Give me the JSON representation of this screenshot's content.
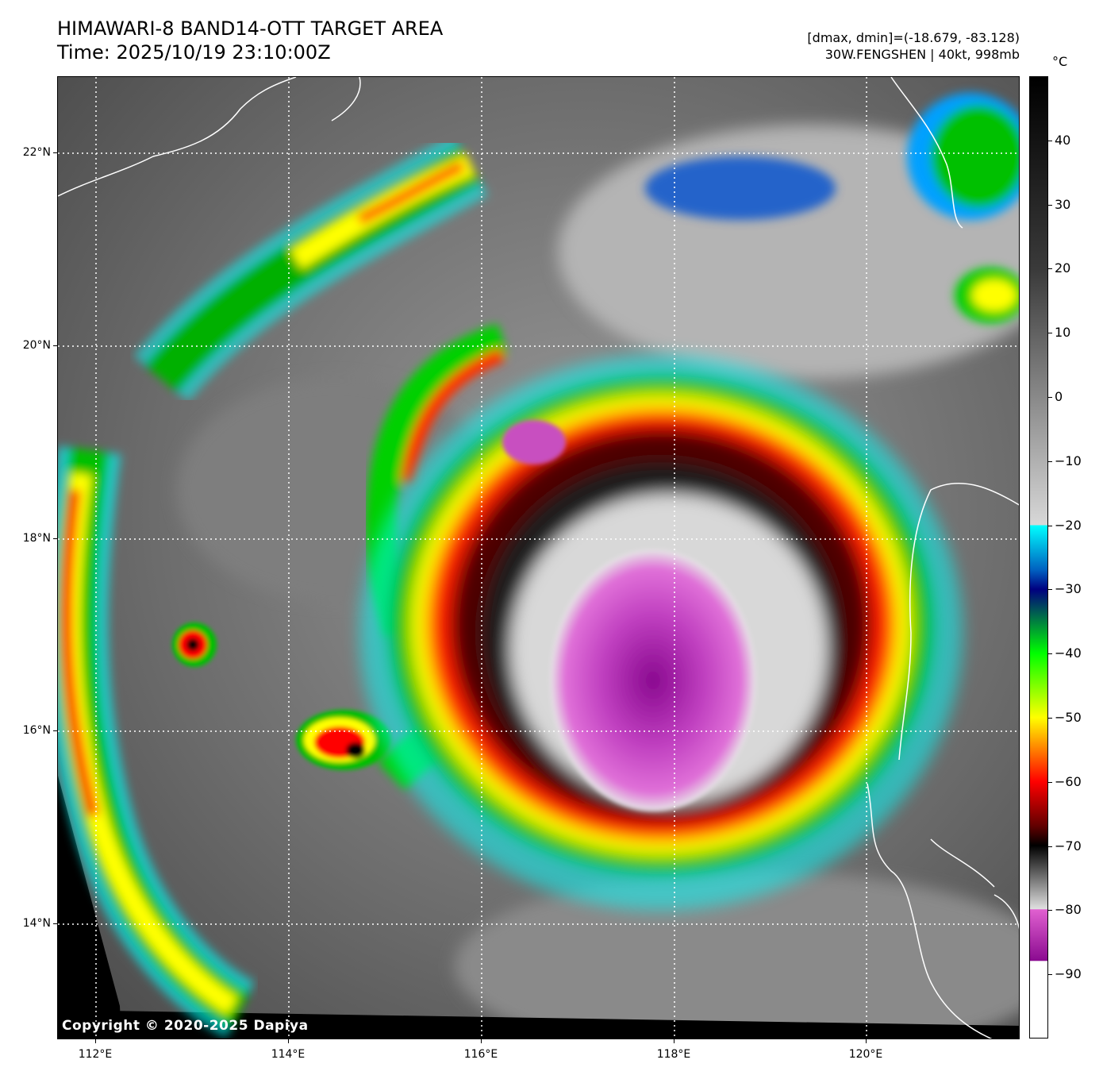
{
  "header": {
    "title_line1": "HIMAWARI-8 BAND14-OTT TARGET AREA",
    "title_line2": "Time: 2025/10/19 23:10:00Z",
    "info_line1": "[dmax, dmin]=(-18.679, -83.128)",
    "info_line2": "30W.FENGSHEN | 40kt, 998mb"
  },
  "map": {
    "copyright": "Copyright © 2020-2025 Dapiya",
    "lat_labels": [
      "22°N",
      "20°N",
      "18°N",
      "16°N",
      "14°N"
    ],
    "lon_labels": [
      "112°E",
      "114°E",
      "116°E",
      "118°E",
      "120°E"
    ],
    "lat_range": [
      12.6,
      22.6
    ],
    "lon_range": [
      111.58,
      121.58
    ]
  },
  "colorbar": {
    "unit": "°C",
    "labels": [
      "40",
      "30",
      "20",
      "10",
      "0",
      "−10",
      "−20",
      "−30",
      "−40",
      "−50",
      "−60",
      "−70",
      "−80",
      "−90"
    ],
    "range": [
      -100,
      50
    ],
    "stops": [
      {
        "t": 50,
        "c": "#000000"
      },
      {
        "t": 20,
        "c": "#3a3a3a"
      },
      {
        "t": -20,
        "c": "#d8d8d8"
      },
      {
        "t": -20.01,
        "c": "#00ffff"
      },
      {
        "t": -27,
        "c": "#0060c0"
      },
      {
        "t": -30,
        "c": "#000080"
      },
      {
        "t": -40,
        "c": "#00ff00"
      },
      {
        "t": -50,
        "c": "#ffff00"
      },
      {
        "t": -60,
        "c": "#ff0000"
      },
      {
        "t": -67,
        "c": "#600000"
      },
      {
        "t": -70,
        "c": "#000000"
      },
      {
        "t": -79.9,
        "c": "#e0e0e0"
      },
      {
        "t": -80,
        "c": "#e060d0"
      },
      {
        "t": -88,
        "c": "#8a0a90"
      },
      {
        "t": -88.01,
        "c": "#ffffff"
      },
      {
        "t": -100,
        "c": "#ffffff"
      }
    ]
  }
}
